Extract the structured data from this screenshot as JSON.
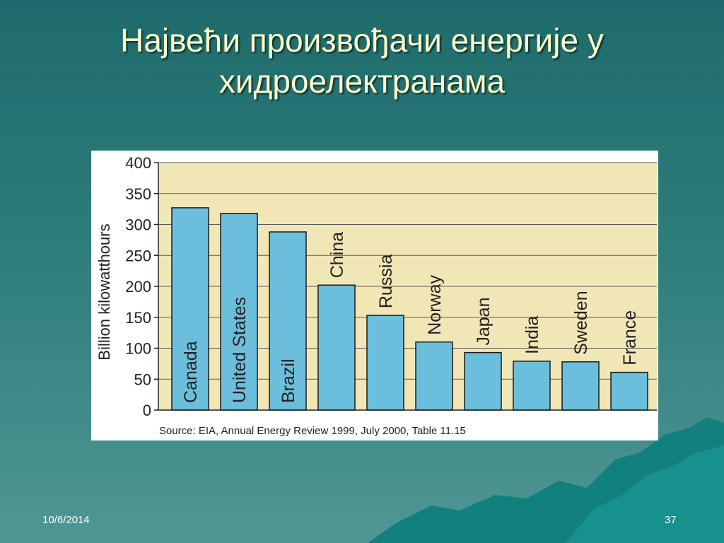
{
  "slide": {
    "title_line1": "Највећи произвођачи енергије у",
    "title_line2": "хидроелектранама",
    "date": "10/6/2014",
    "page_number": "37"
  },
  "colors": {
    "plot_background": "#f1e6b5",
    "bar_fill": "#6cbfdc",
    "bar_stroke": "#1a1a1a",
    "grid": "#5a5a5a"
  },
  "chart_data": {
    "type": "bar",
    "categories": [
      "Canada",
      "United States",
      "Brazil",
      "China",
      "Russia",
      "Norway",
      "Japan",
      "India",
      "Sweden",
      "France"
    ],
    "values": [
      327,
      318,
      288,
      202,
      153,
      110,
      93,
      79,
      78,
      61
    ],
    "title": "",
    "xlabel": "",
    "ylabel": "Billion kilowatthours",
    "ylim": [
      0,
      400
    ],
    "yticks": [
      0,
      50,
      100,
      150,
      200,
      250,
      300,
      350,
      400
    ],
    "grid": true,
    "source": "Source:  EIA, Annual Energy Review 1999, July 2000, Table 11.15"
  }
}
